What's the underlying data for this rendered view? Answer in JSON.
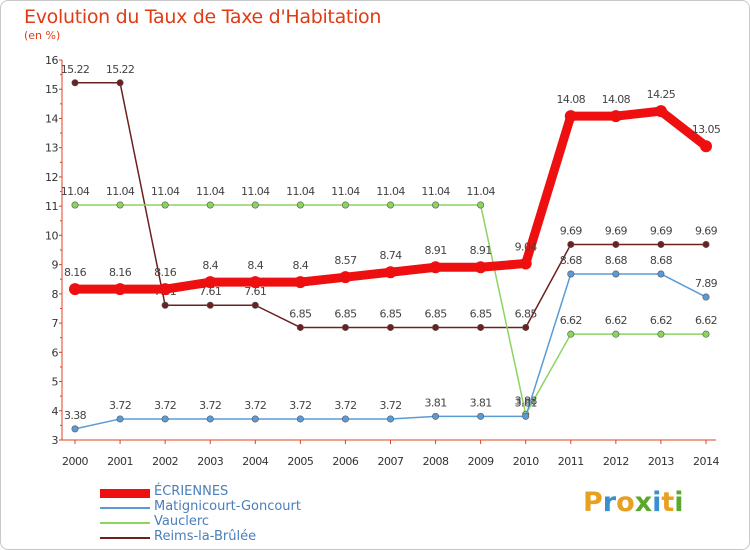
{
  "header": {
    "title": "Evolution du Taux de Taxe d'Habitation",
    "subtitle": "(en %)"
  },
  "brand": {
    "letters": [
      "P",
      "r",
      "o",
      "x",
      "i",
      "t",
      "i"
    ],
    "colors": [
      "#e8a020",
      "#3a8fd0",
      "#e8a020",
      "#5aa82c",
      "#3a8fd0",
      "#e8a020",
      "#5aa82c"
    ]
  },
  "chart_data": {
    "type": "line",
    "title": "Evolution du Taux de Taxe d'Habitation",
    "ylabel": "(en %)",
    "xlabel": "",
    "ylim": [
      3,
      16
    ],
    "yticks": [
      "3",
      "4",
      "5",
      "6",
      "7",
      "8",
      "9",
      "10",
      "11",
      "12",
      "13",
      "14",
      "15",
      "16"
    ],
    "categories": [
      "2000",
      "2001",
      "2002",
      "2003",
      "2004",
      "2005",
      "2006",
      "2007",
      "2008",
      "2009",
      "2010",
      "2011",
      "2012",
      "2013",
      "2014"
    ],
    "grid": false,
    "series": [
      {
        "name": "Reims-la-Brûlée",
        "color": "#6e2020",
        "values": [
          15.22,
          15.22,
          7.61,
          7.61,
          7.61,
          6.85,
          6.85,
          6.85,
          6.85,
          6.85,
          6.85,
          9.69,
          9.69,
          9.69,
          9.69
        ],
        "labels": [
          "15.22",
          "15.22",
          "7.61",
          "7.61",
          "7.61",
          "6.85",
          "6.85",
          "6.85",
          "6.85",
          "6.85",
          "6.85",
          "9.69",
          "9.69",
          "9.69",
          "9.69"
        ]
      },
      {
        "name": "Vauclerc",
        "color": "#8cd460",
        "values": [
          11.04,
          11.04,
          11.04,
          11.04,
          11.04,
          11.04,
          11.04,
          11.04,
          11.04,
          11.04,
          3.88,
          6.62,
          6.62,
          6.62,
          6.62
        ],
        "labels": [
          "11.04",
          "11.04",
          "11.04",
          "11.04",
          "11.04",
          "11.04",
          "11.04",
          "11.04",
          "11.04",
          "11.04",
          "3.88",
          "6.62",
          "6.62",
          "6.62",
          "6.62"
        ]
      },
      {
        "name": "Matignicourt-Goncourt",
        "color": "#5b9bd5",
        "values": [
          3.38,
          3.72,
          3.72,
          3.72,
          3.72,
          3.72,
          3.72,
          3.72,
          3.81,
          3.81,
          3.81,
          8.68,
          8.68,
          8.68,
          7.89
        ],
        "labels": [
          "3.38",
          "3.72",
          "3.72",
          "3.72",
          "3.72",
          "3.72",
          "3.72",
          "3.72",
          "3.81",
          "3.81",
          "3.81",
          "8.68",
          "8.68",
          "8.68",
          "7.89"
        ]
      },
      {
        "name": "ÉCRIENNES",
        "color": "#ee1010",
        "values": [
          8.16,
          8.16,
          8.16,
          8.4,
          8.4,
          8.4,
          8.57,
          8.74,
          8.91,
          8.91,
          9.04,
          14.08,
          14.08,
          14.25,
          13.05
        ],
        "labels": [
          "8.16",
          "8.16",
          "8.16",
          "8.4",
          "8.4",
          "8.4",
          "8.57",
          "8.74",
          "8.91",
          "8.91",
          "9.04",
          "14.08",
          "14.08",
          "14.25",
          "13.05"
        ]
      }
    ],
    "legend_order": [
      "ÉCRIENNES",
      "Matignicourt-Goncourt",
      "Vauclerc",
      "Reims-la-Brûlée"
    ],
    "legend_position": "bottom-left"
  }
}
